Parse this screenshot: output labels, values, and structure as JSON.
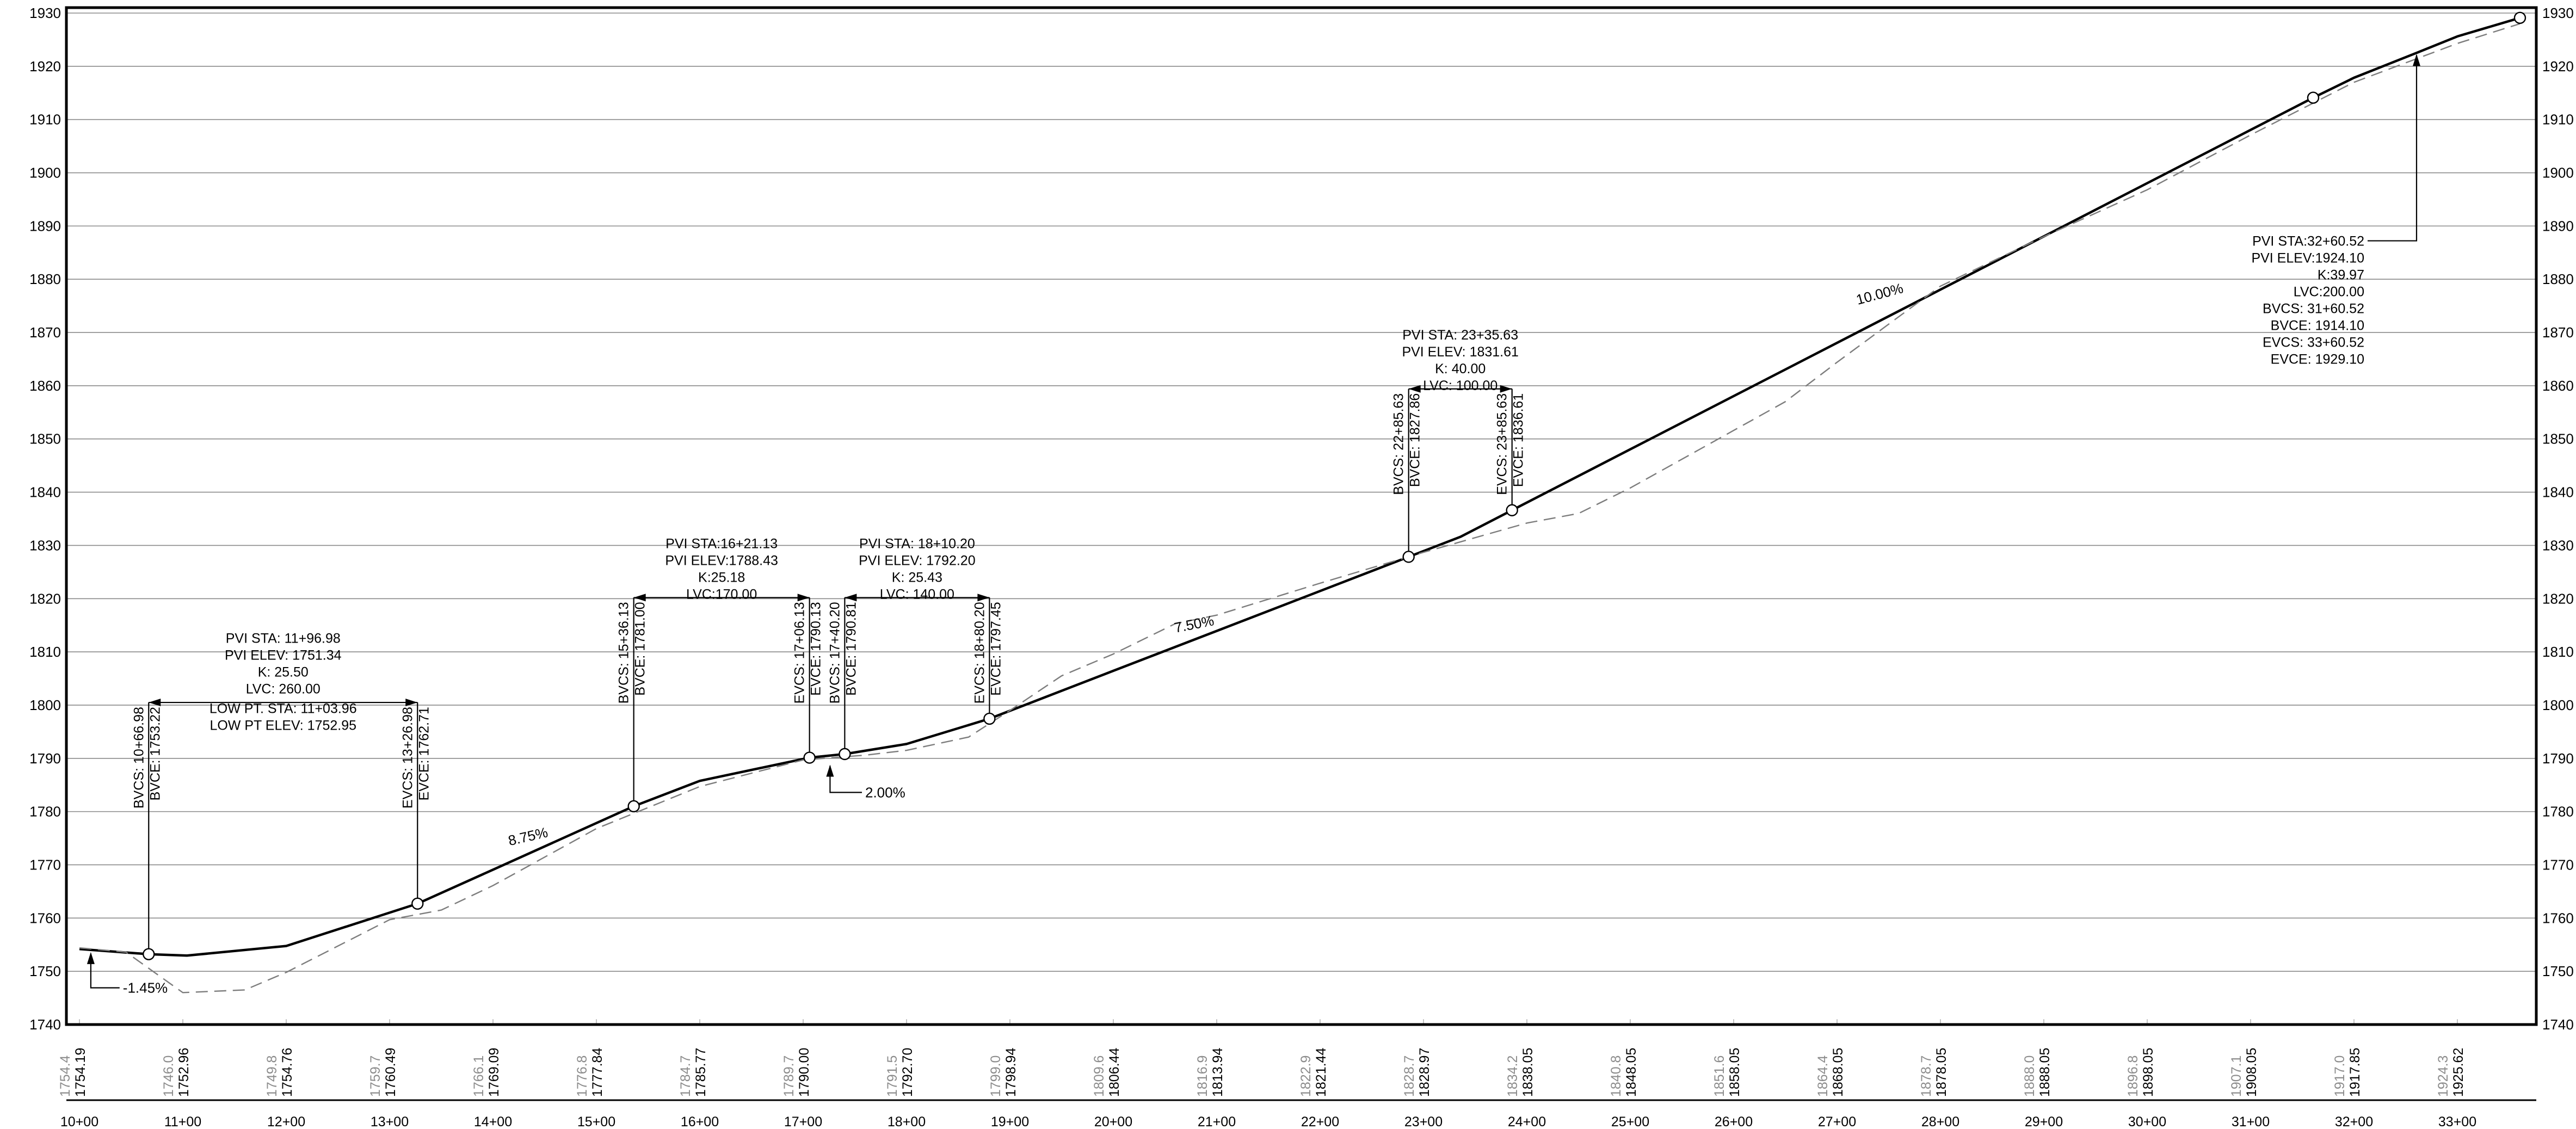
{
  "chart_data": {
    "type": "line",
    "elev_range": [
      1740,
      1930
    ],
    "sta_range": [
      1000,
      3400
    ],
    "elev_ticks": [
      1740,
      1750,
      1760,
      1770,
      1780,
      1790,
      1800,
      1810,
      1820,
      1830,
      1840,
      1850,
      1860,
      1870,
      1880,
      1890,
      1900,
      1910,
      1920,
      1930
    ],
    "station_labels": [
      {
        "sta": 1000,
        "text": "10+00"
      },
      {
        "sta": 1100,
        "text": "11+00"
      },
      {
        "sta": 1200,
        "text": "12+00"
      },
      {
        "sta": 1300,
        "text": "13+00"
      },
      {
        "sta": 1400,
        "text": "14+00"
      },
      {
        "sta": 1500,
        "text": "15+00"
      },
      {
        "sta": 1600,
        "text": "16+00"
      },
      {
        "sta": 1700,
        "text": "17+00"
      },
      {
        "sta": 1800,
        "text": "18+00"
      },
      {
        "sta": 1900,
        "text": "19+00"
      },
      {
        "sta": 2000,
        "text": "20+00"
      },
      {
        "sta": 2100,
        "text": "21+00"
      },
      {
        "sta": 2200,
        "text": "22+00"
      },
      {
        "sta": 2300,
        "text": "23+00"
      },
      {
        "sta": 2400,
        "text": "24+00"
      },
      {
        "sta": 2500,
        "text": "25+00"
      },
      {
        "sta": 2600,
        "text": "26+00"
      },
      {
        "sta": 2700,
        "text": "27+00"
      },
      {
        "sta": 2800,
        "text": "28+00"
      },
      {
        "sta": 2900,
        "text": "29+00"
      },
      {
        "sta": 3000,
        "text": "30+00"
      },
      {
        "sta": 3100,
        "text": "31+00"
      },
      {
        "sta": 3200,
        "text": "32+00"
      },
      {
        "sta": 3300,
        "text": "33+00"
      }
    ],
    "band_columns": [
      {
        "sta": 1000,
        "existing": "1754.4",
        "finished": "1754.19"
      },
      {
        "sta": 1100,
        "existing": "1746.0",
        "finished": "1752.96"
      },
      {
        "sta": 1200,
        "existing": "1749.8",
        "finished": "1754.76"
      },
      {
        "sta": 1300,
        "existing": "1759.7",
        "finished": "1760.49"
      },
      {
        "sta": 1400,
        "existing": "1766.1",
        "finished": "1769.09"
      },
      {
        "sta": 1500,
        "existing": "1776.8",
        "finished": "1777.84"
      },
      {
        "sta": 1600,
        "existing": "1784.7",
        "finished": "1785.77"
      },
      {
        "sta": 1700,
        "existing": "1789.7",
        "finished": "1790.00"
      },
      {
        "sta": 1800,
        "existing": "1791.5",
        "finished": "1792.70"
      },
      {
        "sta": 1900,
        "existing": "1799.0",
        "finished": "1798.94"
      },
      {
        "sta": 2000,
        "existing": "1809.6",
        "finished": "1806.44"
      },
      {
        "sta": 2100,
        "existing": "1816.9",
        "finished": "1813.94"
      },
      {
        "sta": 2200,
        "existing": "1822.9",
        "finished": "1821.44"
      },
      {
        "sta": 2300,
        "existing": "1828.7",
        "finished": "1828.97"
      },
      {
        "sta": 2400,
        "existing": "1834.2",
        "finished": "1838.05"
      },
      {
        "sta": 2500,
        "existing": "1840.8",
        "finished": "1848.05"
      },
      {
        "sta": 2600,
        "existing": "1851.6",
        "finished": "1858.05"
      },
      {
        "sta": 2700,
        "existing": "1864.4",
        "finished": "1868.05"
      },
      {
        "sta": 2800,
        "existing": "1878.7",
        "finished": "1878.05"
      },
      {
        "sta": 2900,
        "existing": "1888.0",
        "finished": "1888.05"
      },
      {
        "sta": 3000,
        "existing": "1896.8",
        "finished": "1898.05"
      },
      {
        "sta": 3100,
        "existing": "1907.1",
        "finished": "1908.05"
      },
      {
        "sta": 3200,
        "existing": "1917.0",
        "finished": "1917.85"
      },
      {
        "sta": 3300,
        "existing": "1924.3",
        "finished": "1925.62"
      }
    ],
    "series": [
      {
        "kind": "proposed-profile",
        "points": [
          [
            1000,
            1754.19
          ],
          [
            1066.98,
            1753.22
          ],
          [
            1103.96,
            1752.95
          ],
          [
            1200,
            1754.76
          ],
          [
            1326.98,
            1762.71
          ],
          [
            1400,
            1769.09
          ],
          [
            1536.13,
            1781.0
          ],
          [
            1600,
            1785.77
          ],
          [
            1706.13,
            1790.13
          ],
          [
            1740.2,
            1790.81
          ],
          [
            1800,
            1792.7
          ],
          [
            1880.2,
            1797.45
          ],
          [
            2000,
            1806.44
          ],
          [
            2100,
            1813.94
          ],
          [
            2285.63,
            1827.86
          ],
          [
            2335.63,
            1831.61
          ],
          [
            2385.63,
            1836.61
          ],
          [
            2500,
            1848.05
          ],
          [
            2800,
            1878.05
          ],
          [
            3100,
            1908.05
          ],
          [
            3160.52,
            1914.1
          ],
          [
            3200,
            1917.85
          ],
          [
            3260.52,
            1922.52
          ],
          [
            3300,
            1925.62
          ],
          [
            3360.52,
            1929.1
          ]
        ]
      },
      {
        "kind": "existing-ground",
        "points": [
          [
            1000,
            1754.4
          ],
          [
            1045,
            1753.6
          ],
          [
            1100,
            1746.0
          ],
          [
            1160,
            1746.5
          ],
          [
            1200,
            1749.8
          ],
          [
            1300,
            1759.7
          ],
          [
            1350,
            1761.5
          ],
          [
            1400,
            1766.1
          ],
          [
            1500,
            1776.8
          ],
          [
            1600,
            1784.7
          ],
          [
            1700,
            1789.7
          ],
          [
            1760,
            1790.6
          ],
          [
            1800,
            1791.5
          ],
          [
            1860,
            1794.0
          ],
          [
            1900,
            1799.0
          ],
          [
            1950,
            1805.5
          ],
          [
            2000,
            1809.6
          ],
          [
            2060,
            1815.3
          ],
          [
            2100,
            1816.9
          ],
          [
            2200,
            1822.9
          ],
          [
            2300,
            1828.7
          ],
          [
            2400,
            1834.2
          ],
          [
            2450,
            1836.0
          ],
          [
            2500,
            1840.8
          ],
          [
            2600,
            1851.6
          ],
          [
            2650,
            1857.0
          ],
          [
            2700,
            1864.4
          ],
          [
            2760,
            1873.0
          ],
          [
            2800,
            1878.7
          ],
          [
            2900,
            1888.0
          ],
          [
            3000,
            1896.8
          ],
          [
            3100,
            1907.1
          ],
          [
            3200,
            1917.0
          ],
          [
            3300,
            1924.3
          ],
          [
            3360.52,
            1928.0
          ]
        ]
      }
    ],
    "pvi_markers": [
      {
        "sta": 1066.98,
        "elev": 1753.22
      },
      {
        "sta": 1326.98,
        "elev": 1762.71
      },
      {
        "sta": 1536.13,
        "elev": 1781.0
      },
      {
        "sta": 1706.13,
        "elev": 1790.13
      },
      {
        "sta": 1740.2,
        "elev": 1790.81
      },
      {
        "sta": 1880.2,
        "elev": 1797.45
      },
      {
        "sta": 2285.63,
        "elev": 1827.86
      },
      {
        "sta": 2385.63,
        "elev": 1836.61
      },
      {
        "sta": 3160.52,
        "elev": 1914.1
      },
      {
        "sta": 3360.52,
        "elev": 1929.1
      }
    ],
    "vertical_labels": [
      {
        "sta": 1066.98,
        "lines": [
          "BVCS: 10+66.98",
          "BVCE: 1753.22"
        ]
      },
      {
        "sta": 1326.98,
        "lines": [
          "EVCS: 13+26.98",
          "EVCE: 1762.71"
        ]
      },
      {
        "sta": 1536.13,
        "lines": [
          "BVCS: 15+36.13",
          "BVCE: 1781.00"
        ]
      },
      {
        "sta": 1706.13,
        "lines": [
          "EVCS: 17+06.13",
          "EVCE: 1790.13"
        ]
      },
      {
        "sta": 1740.2,
        "lines": [
          "BVCS: 17+40.20",
          "BVCE: 1790.81"
        ]
      },
      {
        "sta": 1880.2,
        "lines": [
          "EVCS: 18+80.20",
          "EVCE: 1797.45"
        ]
      },
      {
        "sta": 2285.63,
        "lines": [
          "BVCS: 22+85.63",
          "BVCE: 1827.86"
        ]
      },
      {
        "sta": 2385.63,
        "lines": [
          "EVCS: 23+85.63",
          "EVCE: 1836.61"
        ]
      }
    ],
    "curve_notes": [
      {
        "center_sta": 1196.98,
        "lines": [
          "PVI STA: 11+96.98",
          "PVI ELEV: 1751.34",
          "K: 25.50",
          "LVC: 260.00"
        ]
      },
      {
        "center_sta": 1621.13,
        "lines": [
          "PVI STA:16+21.13",
          "PVI ELEV:1788.43",
          "K:25.18",
          "LVC:170.00"
        ]
      },
      {
        "center_sta": 1810.2,
        "lines": [
          "PVI STA: 18+10.20",
          "PVI ELEV: 1792.20",
          "K: 25.43",
          "LVC: 140.00"
        ]
      },
      {
        "center_sta": 2335.63,
        "lines": [
          "PVI STA: 23+35.63",
          "PVI ELEV: 1831.61",
          "K: 40.00",
          "LVC: 100.00"
        ]
      }
    ],
    "low_point_note": [
      "LOW PT. STA: 11+03.96",
      "LOW PT ELEV: 1752.95"
    ],
    "pvi_note_right": [
      "PVI STA:32+60.52",
      "PVI ELEV:1924.10",
      "K:39.97",
      "LVC:200.00",
      "BVCS: 31+60.52",
      "BVCE: 1914.10",
      "EVCS: 33+60.52",
      "EVCE: 1929.10"
    ],
    "grade_labels": [
      "-1.45%",
      "8.75%",
      "2.00%",
      "7.50%",
      "10.00%"
    ]
  }
}
